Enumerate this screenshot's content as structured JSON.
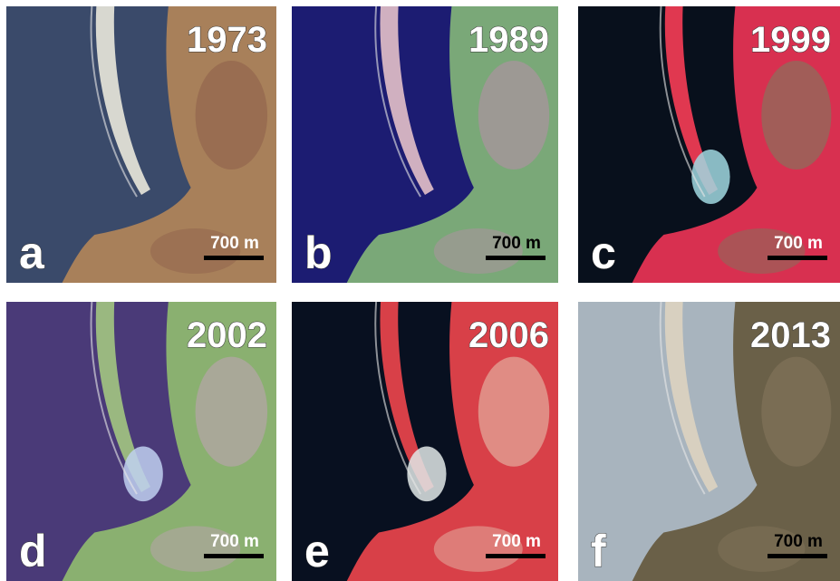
{
  "panels": [
    {
      "year": "1973",
      "letter": "a",
      "scale": "700 m"
    },
    {
      "year": "1989",
      "letter": "b",
      "scale": "700 m"
    },
    {
      "year": "1999",
      "letter": "c",
      "scale": "700 m"
    },
    {
      "year": "2002",
      "letter": "d",
      "scale": "700 m"
    },
    {
      "year": "2006",
      "letter": "e",
      "scale": "700 m"
    },
    {
      "year": "2013",
      "letter": "f",
      "scale": "700 m"
    }
  ]
}
